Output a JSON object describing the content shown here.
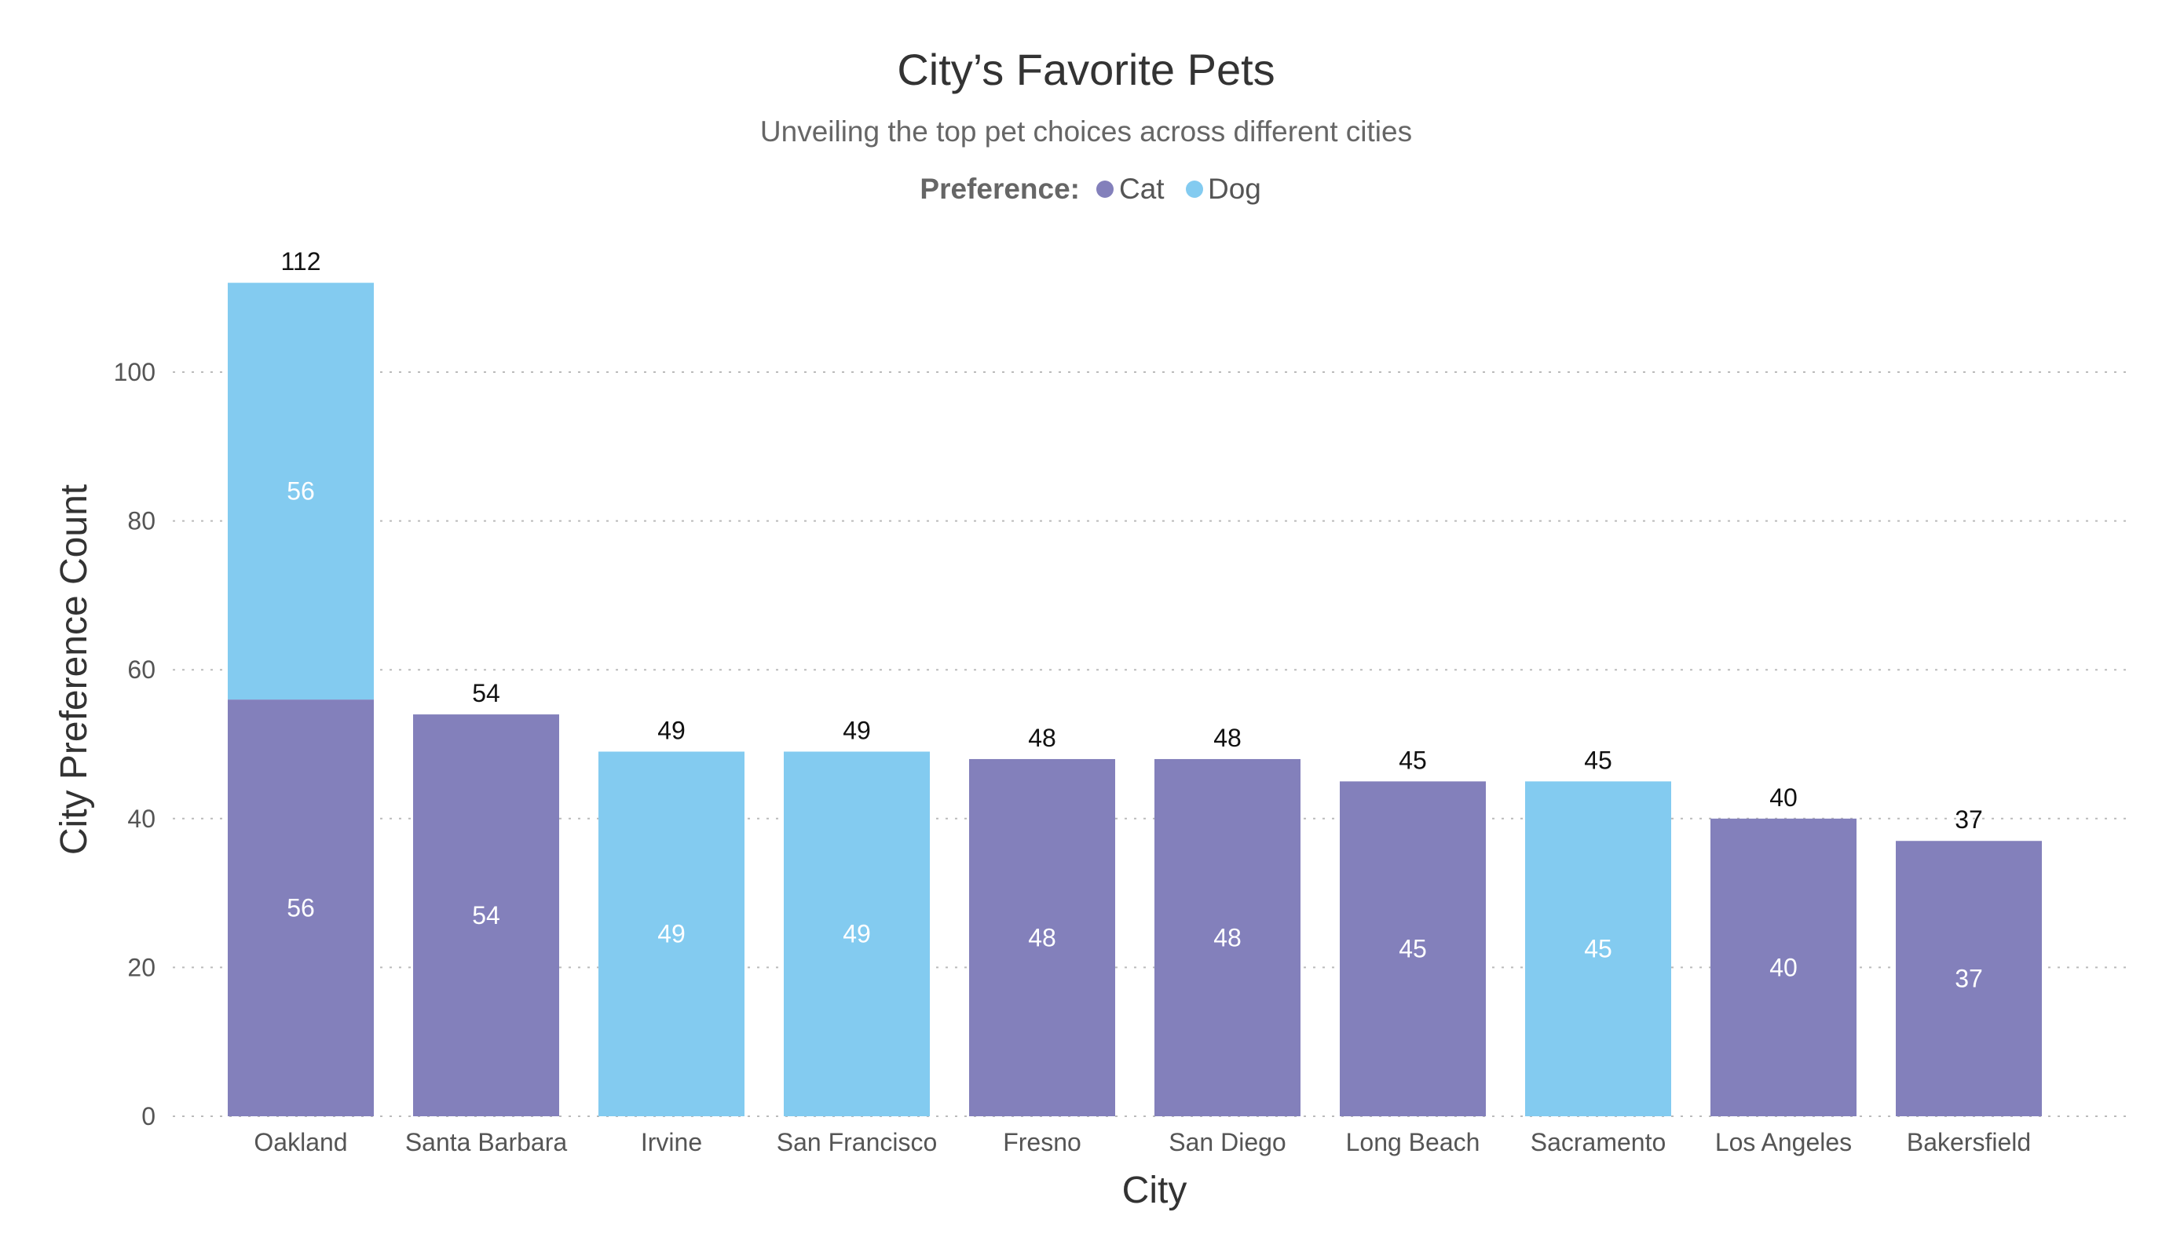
{
  "chart_data": {
    "type": "bar",
    "stacked": true,
    "title": "City’s Favorite Pets",
    "subtitle": "Unveiling the top pet choices across different cities",
    "legend": {
      "title": "Preference:",
      "placement": "top-center",
      "items": [
        {
          "name": "Cat",
          "color": "#8380BB"
        },
        {
          "name": "Dog",
          "color": "#83CBF0"
        }
      ]
    },
    "xlabel": "City",
    "ylabel": "City Preference Count",
    "ylim": [
      0,
      112
    ],
    "yticks": [
      0,
      20,
      40,
      60,
      80,
      100
    ],
    "grid": true,
    "categories": [
      "Oakland",
      "Santa Barbara",
      "Irvine",
      "San Francisco",
      "Fresno",
      "San Diego",
      "Long Beach",
      "Sacramento",
      "Los Angeles",
      "Bakersfield"
    ],
    "series": [
      {
        "name": "Cat",
        "color": "#8380BB",
        "values": [
          56,
          54,
          null,
          null,
          48,
          48,
          45,
          null,
          40,
          37
        ]
      },
      {
        "name": "Dog",
        "color": "#83CBF0",
        "values": [
          56,
          null,
          49,
          49,
          null,
          null,
          null,
          45,
          null,
          null
        ]
      }
    ],
    "totals": [
      112,
      54,
      49,
      49,
      48,
      48,
      45,
      45,
      40,
      37
    ]
  }
}
